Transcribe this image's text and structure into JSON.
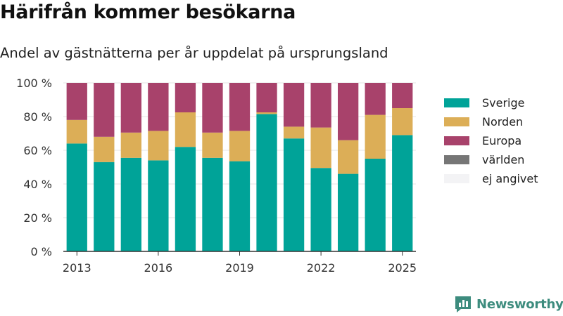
{
  "title": "Härifrån kommer besökarna",
  "subtitle": "Andel av gästnätterna per år uppdelat på ursprungsland",
  "brand": {
    "name": "Newsworthy",
    "icon": "newsworthy-logo-icon"
  },
  "colors": {
    "Sverige": "#00a398",
    "Norden": "#dcae57",
    "Europa": "#a8426b",
    "världen": "#767676",
    "ej angivet": "#f3f3f5",
    "axis": "#333333",
    "grid": "#e6e6e6",
    "brand": "#3d8c7e"
  },
  "chart_data": {
    "type": "bar",
    "stacked": true,
    "title": "Härifrån kommer besökarna",
    "subtitle": "Andel av gästnätterna per år uppdelat på ursprungsland",
    "categories": [
      2013,
      2014,
      2015,
      2016,
      2017,
      2018,
      2019,
      2020,
      2021,
      2022,
      2023,
      2024,
      2025
    ],
    "x_ticks": [
      "2013",
      "2016",
      "2019",
      "2022",
      "2025"
    ],
    "y_ticks": [
      "0 %",
      "20 %",
      "40 %",
      "60 %",
      "80 %",
      "100 %"
    ],
    "ylim": [
      0,
      100
    ],
    "grid": true,
    "legend_position": "right",
    "series": [
      {
        "name": "Sverige",
        "values": [
          64,
          53,
          55.5,
          54,
          62,
          55.5,
          53.5,
          81.5,
          67,
          49.5,
          46,
          55,
          69
        ]
      },
      {
        "name": "Norden",
        "values": [
          14,
          15,
          15,
          17.5,
          20.5,
          15,
          18,
          1,
          7,
          24,
          20,
          26,
          16
        ]
      },
      {
        "name": "Europa",
        "values": [
          22,
          32,
          29.5,
          28.5,
          17.5,
          29.5,
          28.5,
          17.5,
          26,
          26.5,
          34,
          19,
          15
        ]
      },
      {
        "name": "världen",
        "values": [
          0,
          0,
          0,
          0,
          0,
          0,
          0,
          0,
          0,
          0,
          0,
          0,
          0
        ]
      },
      {
        "name": "ej angivet",
        "values": [
          0,
          0,
          0,
          0,
          0,
          0,
          0,
          0,
          0,
          0,
          0,
          0,
          0
        ]
      }
    ]
  }
}
